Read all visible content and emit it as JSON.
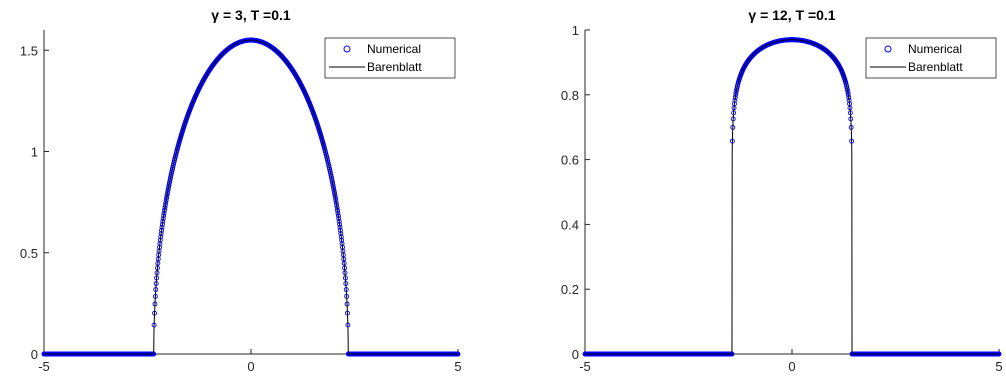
{
  "chart_data": [
    {
      "type": "line",
      "title": "γ = 3, T =0.1",
      "xlabel": "",
      "ylabel": "",
      "xlim": [
        -5,
        5
      ],
      "ylim": [
        0,
        1.6
      ],
      "xticks": [
        "-5",
        "0",
        "5"
      ],
      "yticks": [
        "0",
        "0.5",
        "1",
        "1.5"
      ],
      "gamma": 3,
      "peak": 1.55,
      "support_radius": 2.35,
      "legend_position": "top-right",
      "series": [
        {
          "name": "Numerical",
          "style": "markers",
          "color": "#0000ff"
        },
        {
          "name": "Barenblatt",
          "style": "line",
          "color": "#000000"
        }
      ]
    },
    {
      "type": "line",
      "title": "γ = 12, T =0.1",
      "xlabel": "",
      "ylabel": "",
      "xlim": [
        -5,
        5
      ],
      "ylim": [
        0,
        1
      ],
      "xticks": [
        "-5",
        "0",
        "5"
      ],
      "yticks": [
        "0",
        "0.2",
        "0.4",
        "0.6",
        "0.8",
        "1"
      ],
      "gamma": 12,
      "peak": 0.97,
      "support_radius": 1.45,
      "legend_position": "top-right",
      "series": [
        {
          "name": "Numerical",
          "style": "markers",
          "color": "#0000ff"
        },
        {
          "name": "Barenblatt",
          "style": "line",
          "color": "#000000"
        }
      ]
    }
  ]
}
